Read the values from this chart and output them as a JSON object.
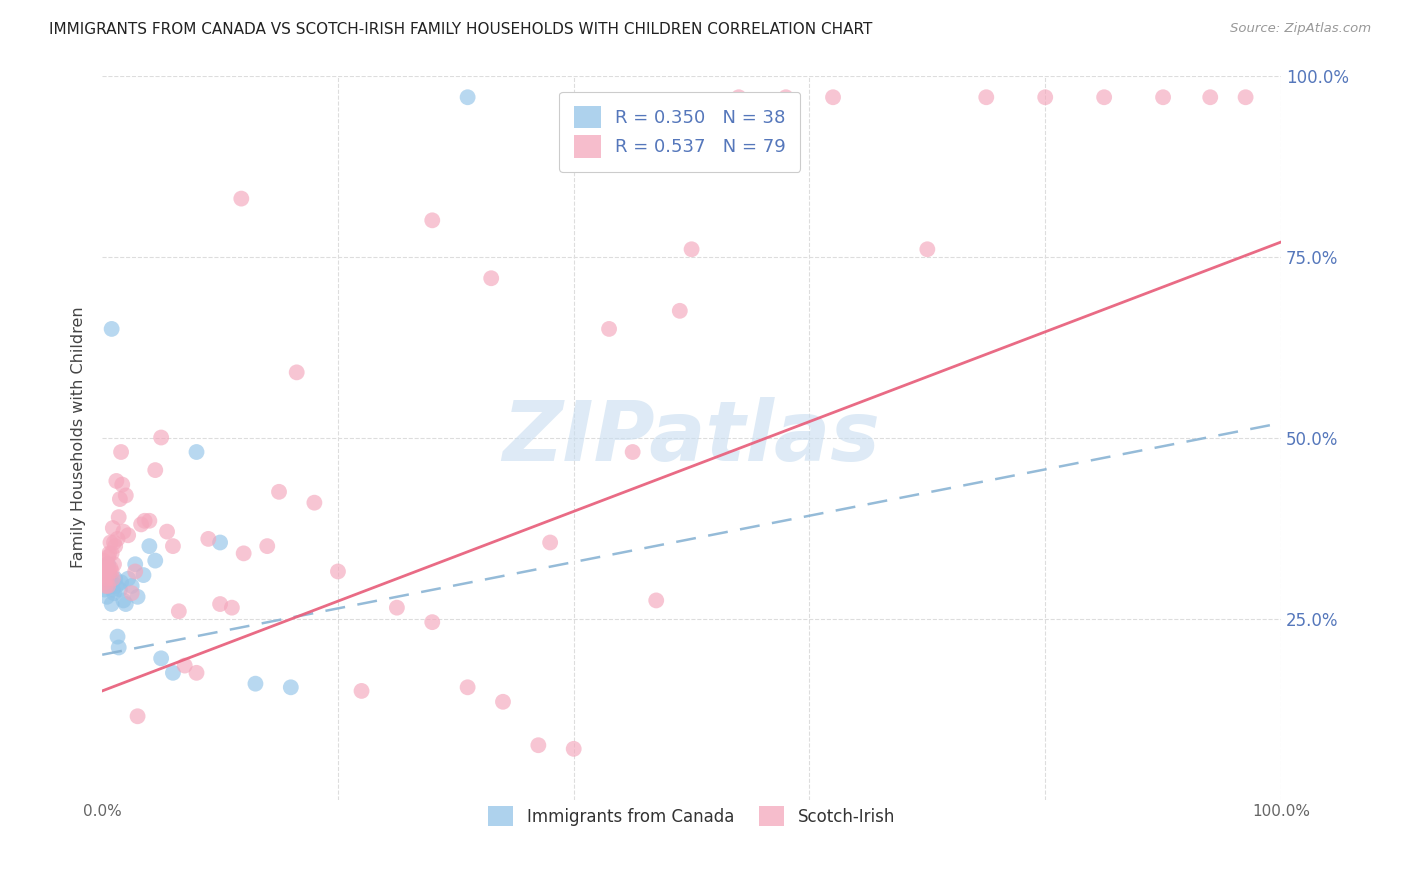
{
  "title": "IMMIGRANTS FROM CANADA VS SCOTCH-IRISH FAMILY HOUSEHOLDS WITH CHILDREN CORRELATION CHART",
  "source": "Source: ZipAtlas.com",
  "ylabel": "Family Households with Children",
  "yticks": [
    "100.0%",
    "75.0%",
    "50.0%",
    "25.0%"
  ],
  "ytick_vals": [
    1.0,
    0.75,
    0.5,
    0.25
  ],
  "legend_blue_R": "R = 0.350",
  "legend_blue_N": "N = 38",
  "legend_pink_R": "R = 0.537",
  "legend_pink_N": "N = 79",
  "blue_color": "#93c4e8",
  "pink_color": "#f4a7bc",
  "blue_line_color": "#8ab4d4",
  "pink_line_color": "#e8637f",
  "watermark_color": "#c8ddf0",
  "watermark": "ZIPatlas",
  "grid_color": "#dddddd",
  "title_color": "#222222",
  "source_color": "#999999",
  "axis_color": "#cccccc",
  "right_label_color": "#5577bb",
  "bottom_label_color": "#333333",
  "blue_intercept": 0.2,
  "blue_slope": 0.32,
  "pink_intercept": 0.15,
  "pink_slope": 0.62,
  "blue_points_x": [
    0.001,
    0.002,
    0.002,
    0.003,
    0.003,
    0.004,
    0.005,
    0.005,
    0.006,
    0.006,
    0.007,
    0.008,
    0.008,
    0.009,
    0.01,
    0.011,
    0.012,
    0.013,
    0.014,
    0.015,
    0.016,
    0.018,
    0.02,
    0.022,
    0.025,
    0.028,
    0.03,
    0.035,
    0.04,
    0.045,
    0.05,
    0.06,
    0.08,
    0.1,
    0.13,
    0.16,
    0.31,
    0.008
  ],
  "blue_points_y": [
    0.3,
    0.32,
    0.29,
    0.315,
    0.305,
    0.28,
    0.3,
    0.325,
    0.31,
    0.295,
    0.305,
    0.295,
    0.27,
    0.29,
    0.285,
    0.305,
    0.295,
    0.225,
    0.21,
    0.29,
    0.3,
    0.275,
    0.27,
    0.305,
    0.295,
    0.325,
    0.28,
    0.31,
    0.35,
    0.33,
    0.195,
    0.175,
    0.48,
    0.355,
    0.16,
    0.155,
    0.97,
    0.65
  ],
  "pink_points_x": [
    0.001,
    0.001,
    0.002,
    0.002,
    0.003,
    0.003,
    0.004,
    0.004,
    0.005,
    0.005,
    0.005,
    0.006,
    0.006,
    0.007,
    0.007,
    0.008,
    0.008,
    0.009,
    0.009,
    0.01,
    0.01,
    0.011,
    0.012,
    0.013,
    0.014,
    0.015,
    0.016,
    0.017,
    0.018,
    0.02,
    0.022,
    0.025,
    0.028,
    0.03,
    0.033,
    0.036,
    0.04,
    0.045,
    0.05,
    0.055,
    0.06,
    0.065,
    0.07,
    0.08,
    0.09,
    0.1,
    0.11,
    0.12,
    0.14,
    0.15,
    0.165,
    0.18,
    0.2,
    0.22,
    0.25,
    0.28,
    0.31,
    0.34,
    0.37,
    0.4,
    0.43,
    0.47,
    0.5,
    0.54,
    0.58,
    0.62,
    0.7,
    0.75,
    0.8,
    0.85,
    0.9,
    0.94,
    0.97,
    0.118,
    0.33,
    0.28,
    0.45,
    0.49,
    0.38
  ],
  "pink_points_y": [
    0.33,
    0.31,
    0.32,
    0.3,
    0.315,
    0.295,
    0.325,
    0.305,
    0.335,
    0.32,
    0.295,
    0.315,
    0.34,
    0.32,
    0.355,
    0.315,
    0.34,
    0.305,
    0.375,
    0.325,
    0.355,
    0.35,
    0.44,
    0.36,
    0.39,
    0.415,
    0.48,
    0.435,
    0.37,
    0.42,
    0.365,
    0.285,
    0.315,
    0.115,
    0.38,
    0.385,
    0.385,
    0.455,
    0.5,
    0.37,
    0.35,
    0.26,
    0.185,
    0.175,
    0.36,
    0.27,
    0.265,
    0.34,
    0.35,
    0.425,
    0.59,
    0.41,
    0.315,
    0.15,
    0.265,
    0.245,
    0.155,
    0.135,
    0.075,
    0.07,
    0.65,
    0.275,
    0.76,
    0.97,
    0.97,
    0.97,
    0.76,
    0.97,
    0.97,
    0.97,
    0.97,
    0.97,
    0.97,
    0.83,
    0.72,
    0.8,
    0.48,
    0.675,
    0.355
  ]
}
